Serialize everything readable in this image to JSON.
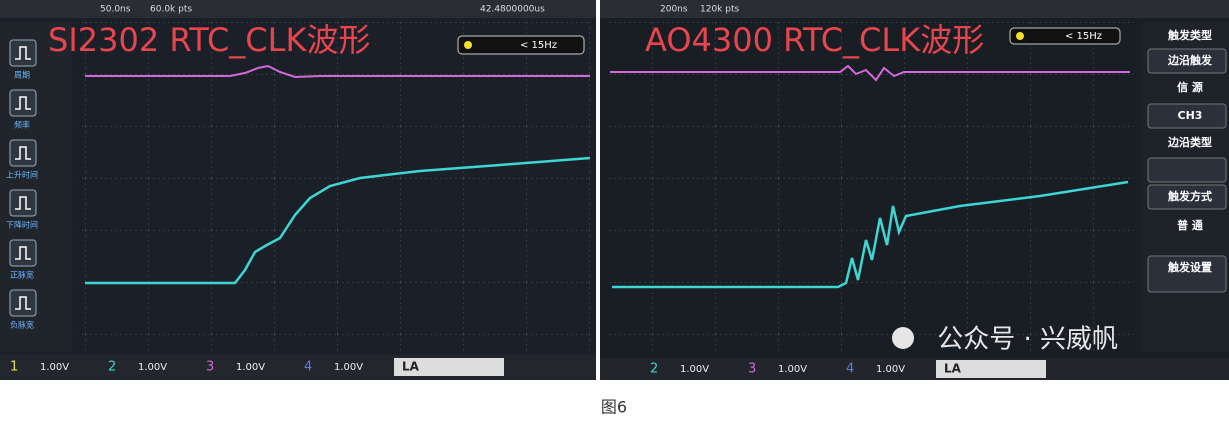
{
  "left_scope": {
    "title": "SI2302 RTC_CLK波形",
    "top_bar": [
      "50.0ns",
      "60.0k pts",
      "42.4800000us"
    ],
    "trigger": "< 15Hz",
    "menu": [
      "周期",
      "频率",
      "上升时间",
      "下降时间",
      "正脉宽",
      "负脉宽"
    ],
    "channels": [
      {
        "num": "1",
        "scale": "1.00V"
      },
      {
        "num": "2",
        "scale": "1.00V"
      },
      {
        "num": "3",
        "scale": "1.00V"
      },
      {
        "num": "4",
        "scale": "1.00V"
      }
    ],
    "la": "LA"
  },
  "right_scope": {
    "title": "AO4300 RTC_CLK波形",
    "top_bar": [
      "200ns",
      "120k pts"
    ],
    "trigger": "< 15Hz",
    "menu": [
      "触发类型",
      "边沿触发",
      "信 源",
      "CH3",
      "边沿类型",
      "触发方式",
      "普 通",
      "触发设置"
    ],
    "channels": [
      {
        "num": "2",
        "scale": "1.00V"
      },
      {
        "num": "3",
        "scale": "1.00V"
      },
      {
        "num": "4",
        "scale": "1.00V"
      }
    ],
    "la": "LA"
  },
  "watermark": "公众号 · 兴威帆",
  "caption": "图6"
}
